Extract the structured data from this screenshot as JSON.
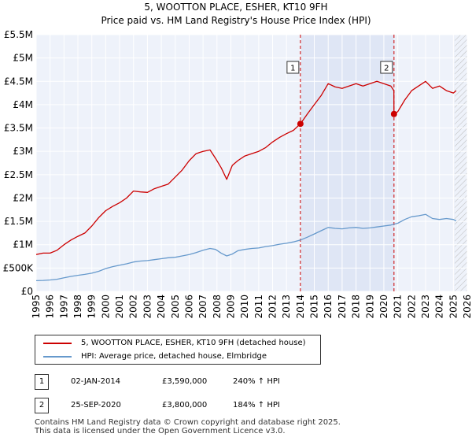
{
  "title": "5, WOOTTON PLACE, ESHER, KT10 9FH",
  "subtitle": "Price paid vs. HM Land Registry's House Price Index (HPI)",
  "chart_data": {
    "type": "line",
    "xlim": [
      1995,
      2026
    ],
    "ylim": [
      0,
      5500000
    ],
    "x_ticks": [
      "1995",
      "1996",
      "1997",
      "1998",
      "1999",
      "2000",
      "2001",
      "2002",
      "2003",
      "2004",
      "2005",
      "2006",
      "2007",
      "2008",
      "2009",
      "2010",
      "2011",
      "2012",
      "2013",
      "2014",
      "2015",
      "2016",
      "2017",
      "2018",
      "2019",
      "2020",
      "2021",
      "2022",
      "2023",
      "2024",
      "2025",
      "2026"
    ],
    "y_ticks": [
      {
        "value": 0,
        "label": "£0"
      },
      {
        "value": 500000,
        "label": "£500K"
      },
      {
        "value": 1000000,
        "label": "£1M"
      },
      {
        "value": 1500000,
        "label": "£1.5M"
      },
      {
        "value": 2000000,
        "label": "£2M"
      },
      {
        "value": 2500000,
        "label": "£2.5M"
      },
      {
        "value": 3000000,
        "label": "£3M"
      },
      {
        "value": 3500000,
        "label": "£3.5M"
      },
      {
        "value": 4000000,
        "label": "£4M"
      },
      {
        "value": 4500000,
        "label": "£4.5M"
      },
      {
        "value": 5000000,
        "label": "£5M"
      },
      {
        "value": 5500000,
        "label": "£5.5M"
      }
    ],
    "grid": true,
    "shaded_period": [
      2014.0,
      2020.73
    ],
    "hatched_from": 2025.1,
    "series": [
      {
        "name": "5, WOOTTON PLACE, ESHER, KT10 9FH (detached house)",
        "color": "#cc0000",
        "x": [
          1995.0,
          1995.5,
          1996.0,
          1996.5,
          1997.0,
          1997.5,
          1998.0,
          1998.5,
          1999.0,
          1999.5,
          2000.0,
          2000.5,
          2001.0,
          2001.5,
          2002.0,
          2002.5,
          2003.0,
          2003.5,
          2004.0,
          2004.5,
          2005.0,
          2005.5,
          2006.0,
          2006.5,
          2007.0,
          2007.5,
          2007.9,
          2008.3,
          2008.7,
          2009.1,
          2009.5,
          2010.0,
          2010.5,
          2011.0,
          2011.5,
          2012.0,
          2012.5,
          2013.0,
          2013.5,
          2014.0,
          2014.5,
          2015.0,
          2015.5,
          2016.0,
          2016.5,
          2017.0,
          2017.5,
          2018.0,
          2018.5,
          2019.0,
          2019.5,
          2020.0,
          2020.5,
          2020.72,
          2020.73,
          2021.0,
          2021.5,
          2022.0,
          2022.5,
          2023.0,
          2023.5,
          2024.0,
          2024.5,
          2025.0,
          2025.2
        ],
        "values": [
          790000,
          820000,
          820000,
          880000,
          1000000,
          1100000,
          1180000,
          1250000,
          1400000,
          1580000,
          1730000,
          1820000,
          1900000,
          2000000,
          2150000,
          2130000,
          2120000,
          2200000,
          2250000,
          2300000,
          2450000,
          2600000,
          2800000,
          2950000,
          3000000,
          3030000,
          2850000,
          2650000,
          2400000,
          2700000,
          2800000,
          2900000,
          2950000,
          3000000,
          3080000,
          3200000,
          3300000,
          3380000,
          3450000,
          3590000,
          3800000,
          4000000,
          4200000,
          4450000,
          4380000,
          4350000,
          4400000,
          4450000,
          4400000,
          4450000,
          4500000,
          4450000,
          4400000,
          4300000,
          3800000,
          3850000,
          4100000,
          4300000,
          4400000,
          4500000,
          4350000,
          4400000,
          4300000,
          4250000,
          4300000
        ]
      },
      {
        "name": "HPI: Average price, detached house, Elmbridge",
        "color": "#6699cc",
        "x": [
          1995.0,
          1995.5,
          1996.0,
          1996.5,
          1997.0,
          1997.5,
          1998.0,
          1998.5,
          1999.0,
          1999.5,
          2000.0,
          2000.5,
          2001.0,
          2001.5,
          2002.0,
          2002.5,
          2003.0,
          2003.5,
          2004.0,
          2004.5,
          2005.0,
          2005.5,
          2006.0,
          2006.5,
          2007.0,
          2007.5,
          2007.9,
          2008.3,
          2008.7,
          2009.1,
          2009.5,
          2010.0,
          2010.5,
          2011.0,
          2011.5,
          2012.0,
          2012.5,
          2013.0,
          2013.5,
          2014.0,
          2014.5,
          2015.0,
          2015.5,
          2016.0,
          2016.5,
          2017.0,
          2017.5,
          2018.0,
          2018.5,
          2019.0,
          2019.5,
          2020.0,
          2020.5,
          2021.0,
          2021.5,
          2022.0,
          2022.5,
          2023.0,
          2023.5,
          2024.0,
          2024.5,
          2025.0,
          2025.2
        ],
        "values": [
          230000,
          235000,
          245000,
          260000,
          290000,
          320000,
          345000,
          365000,
          390000,
          430000,
          490000,
          530000,
          560000,
          590000,
          630000,
          650000,
          660000,
          680000,
          700000,
          720000,
          730000,
          760000,
          790000,
          830000,
          880000,
          920000,
          900000,
          820000,
          760000,
          800000,
          870000,
          900000,
          920000,
          930000,
          960000,
          980000,
          1010000,
          1030000,
          1060000,
          1100000,
          1160000,
          1230000,
          1300000,
          1370000,
          1350000,
          1340000,
          1360000,
          1370000,
          1350000,
          1360000,
          1380000,
          1400000,
          1420000,
          1460000,
          1540000,
          1600000,
          1620000,
          1650000,
          1560000,
          1540000,
          1560000,
          1540000,
          1510000
        ]
      }
    ],
    "sales": [
      {
        "id": "1",
        "x": 2014.0,
        "value": 3590000,
        "date": "02-JAN-2014",
        "price": "£3,590,000",
        "hpi": "240% ↑ HPI"
      },
      {
        "id": "2",
        "x": 2020.73,
        "value": 3800000,
        "date": "25-SEP-2020",
        "price": "£3,800,000",
        "hpi": "184% ↑ HPI"
      }
    ]
  },
  "legend": {
    "property_label": "5, WOOTTON PLACE, ESHER, KT10 9FH (detached house)",
    "hpi_label": "HPI: Average price, detached house, Elmbridge",
    "property_color": "#cc0000",
    "hpi_color": "#6699cc"
  },
  "footer": {
    "line1": "Contains HM Land Registry data © Crown copyright and database right 2025.",
    "line2": "This data is licensed under the Open Government Licence v3.0."
  }
}
